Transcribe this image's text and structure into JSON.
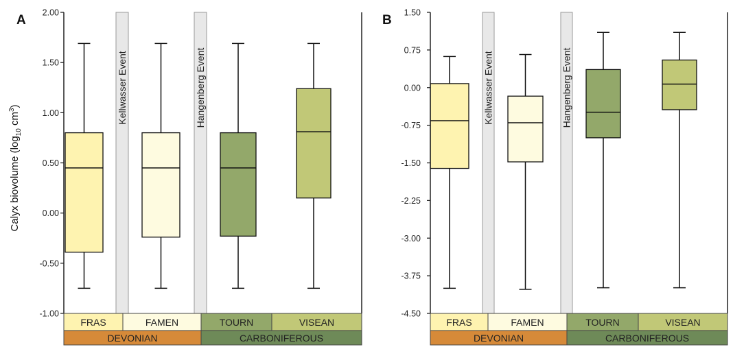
{
  "chart_data": [
    {
      "panel": "A",
      "type": "box",
      "ylabel": "Calyx biovolume (log",
      "ylabel_sub": "10",
      "ylabel_unit": " cm",
      "ylabel_sup": "3",
      "ylabel_end": ")",
      "ylim": [
        -1.0,
        2.0
      ],
      "yticks": [
        "2.00",
        "1.50",
        "1.00",
        "0.50",
        "0.00",
        "-0.50",
        "-1.00"
      ],
      "ytick_values": [
        2.0,
        1.5,
        1.0,
        0.5,
        0.0,
        -0.5,
        -1.0
      ],
      "boxes": [
        {
          "label": "FRAS",
          "min": -0.75,
          "q1": -0.39,
          "median": 0.45,
          "q3": 0.8,
          "max": 1.69,
          "color": "#fef3b0"
        },
        {
          "label": "FAMEN",
          "min": -0.75,
          "q1": -0.24,
          "median": 0.45,
          "q3": 0.8,
          "max": 1.69,
          "color": "#fefbe0"
        },
        {
          "label": "TOURN",
          "min": -0.75,
          "q1": -0.23,
          "median": 0.45,
          "q3": 0.8,
          "max": 1.69,
          "color": "#93a86a"
        },
        {
          "label": "VISEAN",
          "min": -0.75,
          "q1": 0.15,
          "median": 0.81,
          "q3": 1.24,
          "max": 1.69,
          "color": "#c1c877"
        }
      ],
      "events": [
        "Kellwasser Event",
        "Hangenberg Event"
      ],
      "stages": [
        {
          "label": "FRAS",
          "color": "#fef3b0"
        },
        {
          "label": "FAMEN",
          "color": "#fefbe0"
        },
        {
          "label": "TOURN",
          "color": "#93a86a"
        },
        {
          "label": "VISEAN",
          "color": "#c1c877"
        }
      ],
      "periods": [
        {
          "label": "DEVONIAN",
          "color": "#d68a39"
        },
        {
          "label": "CARBONIFEROUS",
          "color": "#6e8a58"
        }
      ]
    },
    {
      "panel": "B",
      "type": "box",
      "ylim": [
        -4.5,
        1.5
      ],
      "yticks": [
        "1.50",
        "0.75",
        "0.00",
        "-0.75",
        "-1.50",
        "-2.25",
        "-3.00",
        "-3.75",
        "-4.50"
      ],
      "ytick_values": [
        1.5,
        0.75,
        0.0,
        -0.75,
        -1.5,
        -2.25,
        -3.0,
        -3.75,
        -4.5
      ],
      "boxes": [
        {
          "label": "FRAS",
          "min": -4.0,
          "q1": -1.61,
          "median": -0.66,
          "q3": 0.08,
          "max": 0.62,
          "color": "#fef3b0"
        },
        {
          "label": "FAMEN",
          "min": -4.02,
          "q1": -1.48,
          "median": -0.7,
          "q3": -0.17,
          "max": 0.66,
          "color": "#fefbe0"
        },
        {
          "label": "TOURN",
          "min": -3.99,
          "q1": -1.0,
          "median": -0.49,
          "q3": 0.36,
          "max": 1.1,
          "color": "#93a86a"
        },
        {
          "label": "VISEAN",
          "min": -3.99,
          "q1": -0.44,
          "median": 0.07,
          "q3": 0.55,
          "max": 1.1,
          "color": "#c1c877"
        }
      ],
      "events": [
        "Kellwasser Event",
        "Hangenberg Event"
      ],
      "stages": [
        {
          "label": "FRAS",
          "color": "#fef3b0"
        },
        {
          "label": "FAMEN",
          "color": "#fefbe0"
        },
        {
          "label": "TOURN",
          "color": "#93a86a"
        },
        {
          "label": "VISEAN",
          "color": "#c1c877"
        }
      ],
      "periods": [
        {
          "label": "DEVONIAN",
          "color": "#d68a39"
        },
        {
          "label": "CARBONIFEROUS",
          "color": "#6e8a58"
        }
      ]
    }
  ]
}
